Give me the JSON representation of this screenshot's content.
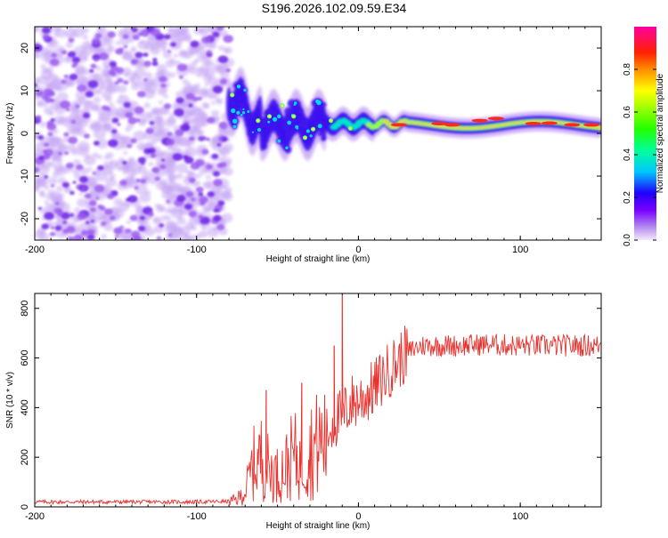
{
  "chart_data": [
    {
      "type": "heatmap",
      "title": "S196.2026.102.09.59.E34",
      "xlabel": "Height of straight line (km)",
      "ylabel": "Frequency (Hz)",
      "xlim": [
        -200,
        150
      ],
      "ylim": [
        -25,
        25
      ],
      "xticks": [
        -200,
        -100,
        0,
        100
      ],
      "yticks": [
        -20,
        -10,
        0,
        10,
        20
      ],
      "colorbar": {
        "label": "Normalized spectral amplitude",
        "range": [
          0,
          1
        ],
        "ticks": [
          "0.0",
          "0.2",
          "0.4",
          "0.6",
          "0.8"
        ]
      },
      "regions": [
        {
          "name": "noise",
          "x_range": [
            -200,
            -80
          ],
          "description_values": {
            "amplitude_max": 0.35,
            "freq_range": [
              -25,
              25
            ]
          }
        },
        {
          "name": "signal-band",
          "x_range": [
            -80,
            150
          ],
          "center_freq_start": 9,
          "center_freq_end": 2,
          "amplitude_max": 1.0
        }
      ]
    },
    {
      "type": "line",
      "title": "",
      "xlabel": "Height of straight line (km)",
      "ylabel": "SNR (10 * v/v)",
      "xlim": [
        -200,
        150
      ],
      "ylim": [
        0,
        860
      ],
      "xticks": [
        -200,
        -100,
        0,
        100
      ],
      "yticks": [
        0,
        200,
        400,
        600,
        800
      ],
      "series": [
        {
          "name": "SNR",
          "color": "#e8322e",
          "x": [
            -200,
            -150,
            -100,
            -80,
            -75,
            -70,
            -65,
            -60,
            -55,
            -50,
            -45,
            -40,
            -35,
            -30,
            -25,
            -20,
            -15,
            -10,
            -5,
            0,
            5,
            10,
            15,
            20,
            25,
            30,
            35,
            40,
            50,
            60,
            80,
            100,
            120,
            150
          ],
          "y": [
            20,
            20,
            20,
            22,
            30,
            60,
            170,
            200,
            150,
            130,
            160,
            210,
            170,
            230,
            250,
            280,
            350,
            360,
            420,
            430,
            450,
            480,
            520,
            560,
            590,
            620,
            640,
            650,
            650,
            650,
            655,
            650,
            650,
            650
          ],
          "spikes": [
            {
              "x": -10,
              "y": 850
            },
            {
              "x": -15,
              "y": 650
            },
            {
              "x": -35,
              "y": 500
            },
            {
              "x": -57,
              "y": 470
            }
          ]
        }
      ]
    }
  ]
}
